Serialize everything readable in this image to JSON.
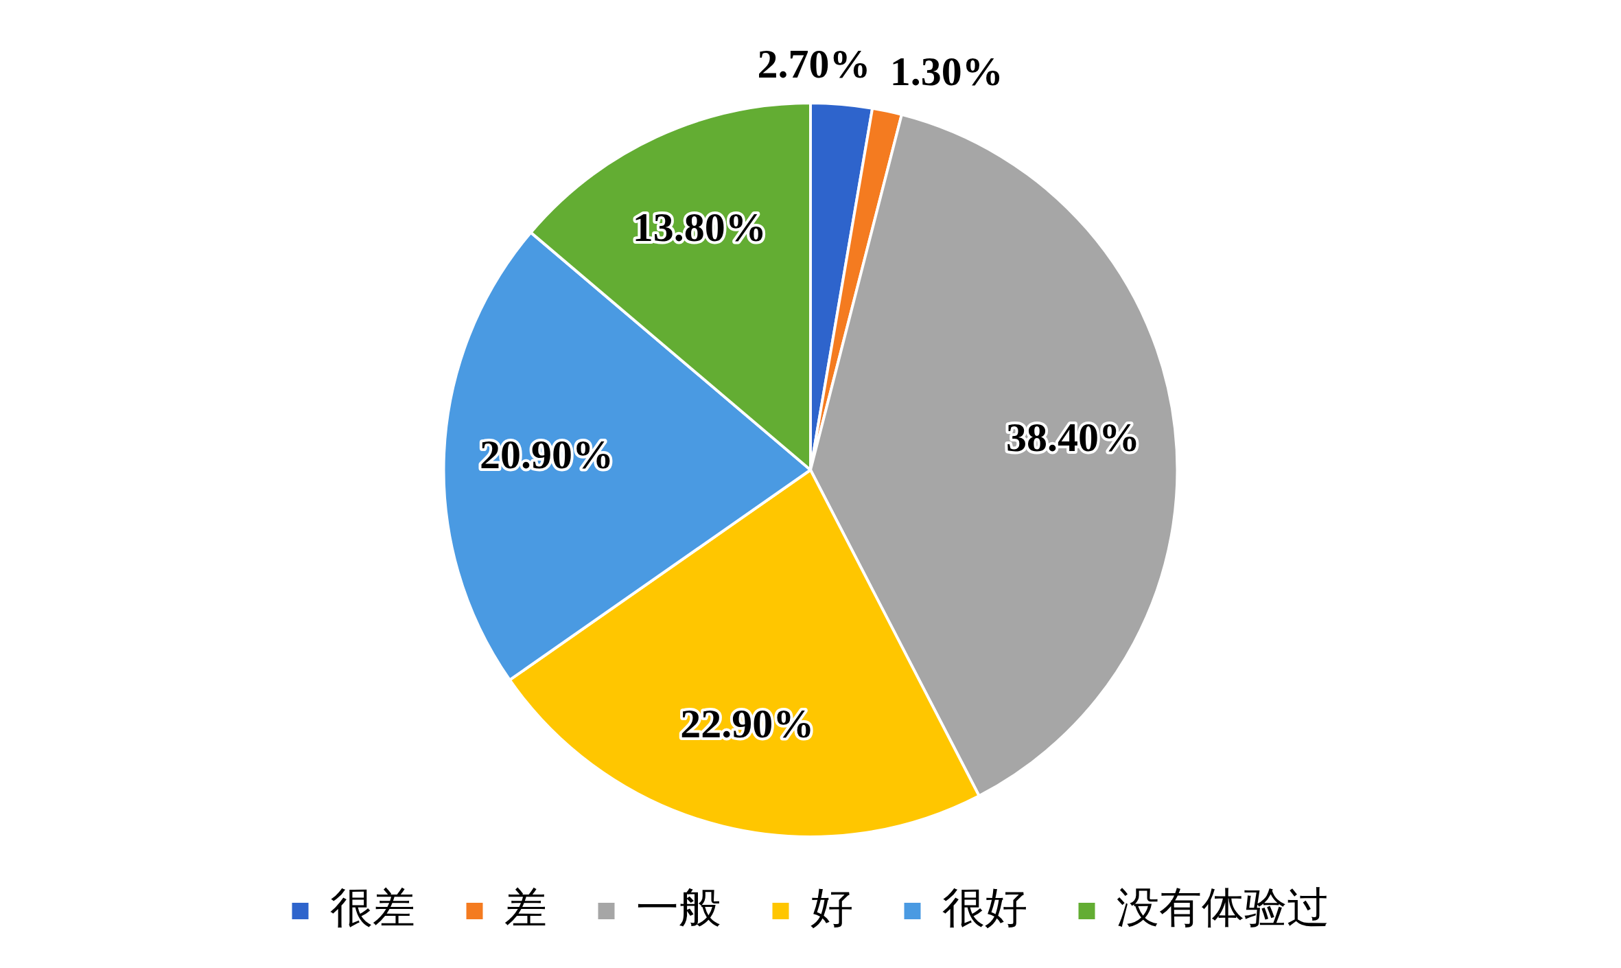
{
  "chart_data": {
    "type": "pie",
    "categories": [
      "很差",
      "差",
      "一般",
      "好",
      "很好",
      "没有体验过"
    ],
    "values": [
      2.7,
      1.3,
      38.4,
      22.9,
      20.9,
      13.8
    ],
    "value_labels": [
      "2.70%",
      "1.30%",
      "38.40%",
      "22.90%",
      "20.90%",
      "13.80%"
    ],
    "colors": [
      "#2e64cc",
      "#f47b20",
      "#a6a6a6",
      "#ffc600",
      "#4a9ae2",
      "#63ad33"
    ],
    "legend": "bottom"
  }
}
